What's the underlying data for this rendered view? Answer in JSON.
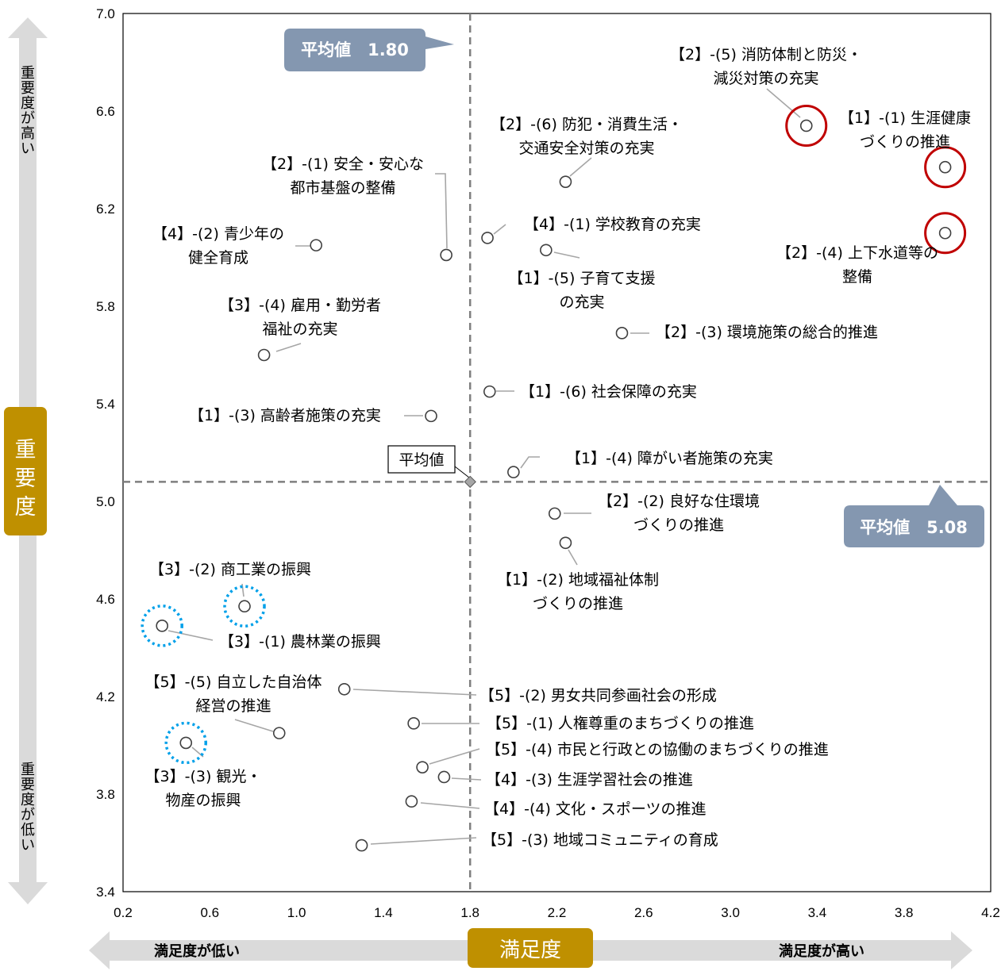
{
  "chart_data": {
    "type": "scatter",
    "xlabel": "満足度",
    "ylabel": "重要度",
    "xlim": [
      0.2,
      4.2
    ],
    "ylim": [
      3.4,
      7.0
    ],
    "xticks": [
      "0.2",
      "0.6",
      "1.0",
      "1.4",
      "1.8",
      "2.2",
      "2.6",
      "3.0",
      "3.4",
      "3.8",
      "4.2"
    ],
    "yticks": [
      "3.4",
      "3.8",
      "4.2",
      "4.6",
      "5.0",
      "5.4",
      "5.8",
      "6.2",
      "6.6",
      "7.0"
    ],
    "x_low_label": "満足度が低い",
    "x_high_label": "満足度が高い",
    "y_high_label": "重要度が高い",
    "y_low_label": "重要度が低い",
    "average": {
      "x": 1.8,
      "y": 5.08,
      "marker_label": "平均値",
      "x_callout": "平均値　1.80",
      "y_callout": "平均値　5.08"
    },
    "points": [
      {
        "x": 3.35,
        "y": 6.54,
        "label": [
          "【2】-(5) 消防体制と防災・",
          "減災対策の充実"
        ],
        "highlight": "red"
      },
      {
        "x": 3.99,
        "y": 6.37,
        "label": [
          "【1】-(1) 生涯健康",
          "づくりの推進"
        ],
        "highlight": "red"
      },
      {
        "x": 3.99,
        "y": 6.1,
        "label": [
          "【2】-(4) 上下水道等の",
          "整備"
        ],
        "highlight": "red"
      },
      {
        "x": 2.24,
        "y": 6.31,
        "label": [
          "【2】-(6) 防犯・消費生活・",
          "交通安全対策の充実"
        ]
      },
      {
        "x": 1.69,
        "y": 6.01,
        "label": [
          "【2】-(1) 安全・安心な",
          "都市基盤の整備"
        ]
      },
      {
        "x": 1.09,
        "y": 6.05,
        "label": [
          "【4】-(2) 青少年の",
          "健全育成"
        ]
      },
      {
        "x": 1.88,
        "y": 6.08,
        "label": [
          "【4】-(1) 学校教育の充実"
        ]
      },
      {
        "x": 2.15,
        "y": 6.03,
        "label": [
          "【1】-(5) 子育て支援",
          "の充実"
        ]
      },
      {
        "x": 0.85,
        "y": 5.6,
        "label": [
          "【3】-(4) 雇用・勤労者",
          "福祉の充実"
        ]
      },
      {
        "x": 2.5,
        "y": 5.69,
        "label": [
          "【2】-(3) 環境施策の総合的推進"
        ]
      },
      {
        "x": 1.89,
        "y": 5.45,
        "label": [
          "【1】-(6) 社会保障の充実"
        ]
      },
      {
        "x": 1.62,
        "y": 5.35,
        "label": [
          "【1】-(3) 高齢者施策の充実"
        ]
      },
      {
        "x": 2.0,
        "y": 5.12,
        "label": [
          "【1】-(4) 障がい者施策の充実"
        ]
      },
      {
        "x": 2.19,
        "y": 4.95,
        "label": [
          "【2】-(2) 良好な住環境",
          "づくりの推進"
        ]
      },
      {
        "x": 2.24,
        "y": 4.83,
        "label": [
          "【1】-(2) 地域福祉体制",
          "づくりの推進"
        ]
      },
      {
        "x": 0.76,
        "y": 4.57,
        "label": [
          "【3】-(2) 商工業の振興"
        ],
        "highlight": "blue"
      },
      {
        "x": 0.38,
        "y": 4.49,
        "label": [
          "【3】-(1) 農林業の振興"
        ],
        "highlight": "blue"
      },
      {
        "x": 1.22,
        "y": 4.23,
        "label": [
          "【5】-(2) 男女共同参画社会の形成"
        ]
      },
      {
        "x": 0.92,
        "y": 4.05,
        "label": [
          "【5】-(5) 自立した自治体",
          "経営の推進"
        ]
      },
      {
        "x": 1.54,
        "y": 4.09,
        "label": [
          "【5】-(1) 人権尊重のまちづくりの推進"
        ]
      },
      {
        "x": 0.49,
        "y": 4.01,
        "label": [
          "【3】-(3) 観光・",
          "物産の振興"
        ],
        "highlight": "blue"
      },
      {
        "x": 1.58,
        "y": 3.91,
        "label": [
          "【5】-(4) 市民と行政との協働のまちづくりの推進"
        ]
      },
      {
        "x": 1.68,
        "y": 3.87,
        "label": [
          "【4】-(3) 生涯学習社会の推進"
        ]
      },
      {
        "x": 1.53,
        "y": 3.77,
        "label": [
          "【4】-(4) 文化・スポーツの推進"
        ]
      },
      {
        "x": 1.3,
        "y": 3.59,
        "label": [
          "【5】-(3) 地域コミュニティの育成"
        ]
      }
    ]
  }
}
